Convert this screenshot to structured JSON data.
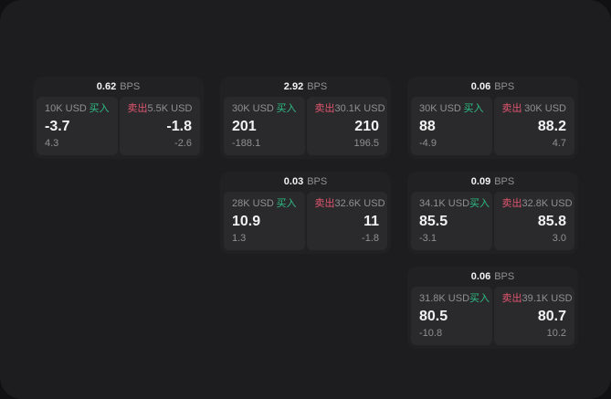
{
  "colors": {
    "window": "#1d1d1f",
    "card": "#212123",
    "panel": "#2a2a2c",
    "buy": "#2ebd85",
    "sell": "#e0556e",
    "text_primary": "#f2f2f2",
    "text_muted": "#909092"
  },
  "cards": [
    {
      "spread": "0.62",
      "unit": "BPS",
      "buy": {
        "amount": "10K USD",
        "label": "买入",
        "price": "-3.7",
        "change": "4.3"
      },
      "sell": {
        "label": "卖出",
        "amount": "5.5K USD",
        "price": "-1.8",
        "change": "-2.6"
      }
    },
    {
      "spread": "2.92",
      "unit": "BPS",
      "buy": {
        "amount": "30K USD",
        "label": "买入",
        "price": "201",
        "change": "-188.1"
      },
      "sell": {
        "label": "卖出",
        "amount": "30.1K USD",
        "price": "210",
        "change": "196.5"
      }
    },
    {
      "spread": "0.06",
      "unit": "BPS",
      "buy": {
        "amount": "30K USD",
        "label": "买入",
        "price": "88",
        "change": "-4.9"
      },
      "sell": {
        "label": "卖出",
        "amount": "30K USD",
        "price": "88.2",
        "change": "4.7"
      }
    },
    {
      "spread": "0.03",
      "unit": "BPS",
      "buy": {
        "amount": "28K USD",
        "label": "买入",
        "price": "10.9",
        "change": "1.3"
      },
      "sell": {
        "label": "卖出",
        "amount": "32.6K USD",
        "price": "11",
        "change": "-1.8"
      }
    },
    {
      "spread": "0.09",
      "unit": "BPS",
      "buy": {
        "amount": "34.1K USD",
        "label": "买入",
        "price": "85.5",
        "change": "-3.1"
      },
      "sell": {
        "label": "卖出",
        "amount": "32.8K USD",
        "price": "85.8",
        "change": "3.0"
      }
    },
    {
      "spread": "0.06",
      "unit": "BPS",
      "buy": {
        "amount": "31.8K USD",
        "label": "买入",
        "price": "80.5",
        "change": "-10.8"
      },
      "sell": {
        "label": "卖出",
        "amount": "39.1K USD",
        "price": "80.7",
        "change": "10.2"
      }
    }
  ]
}
